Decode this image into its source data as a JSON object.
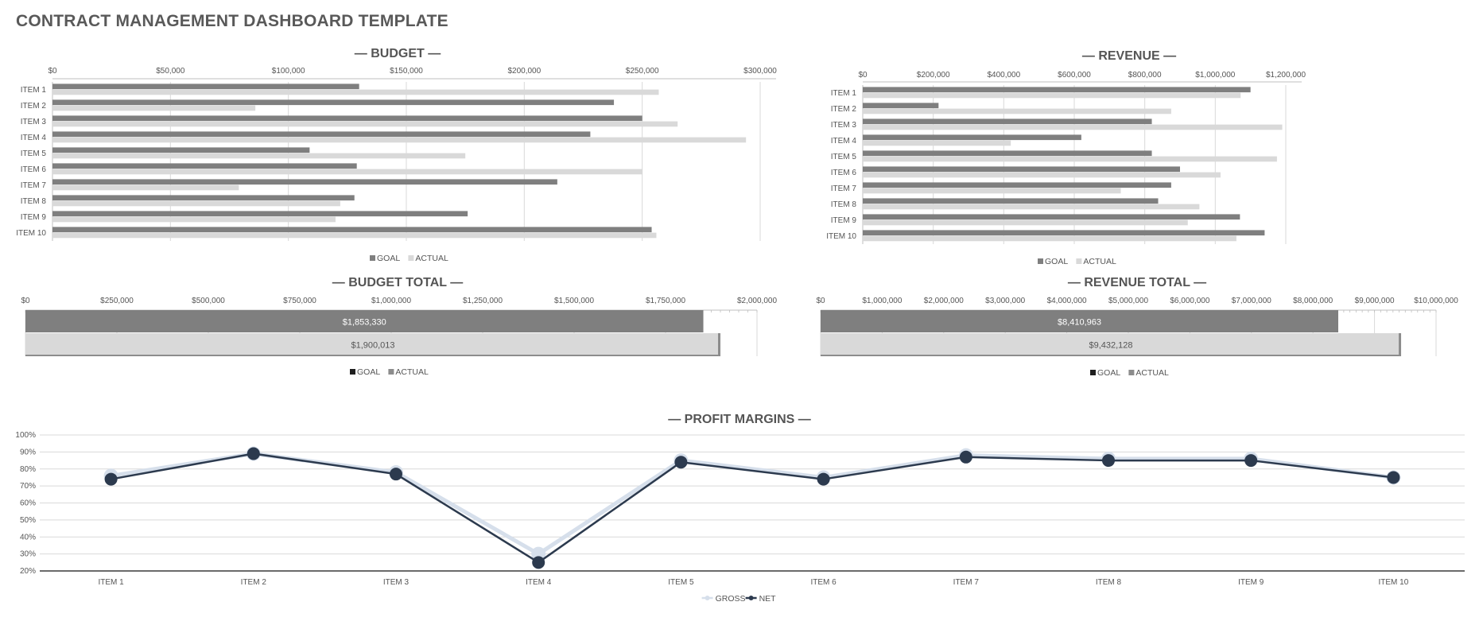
{
  "page": {
    "title": "CONTRACT MANAGEMENT DASHBOARD TEMPLATE"
  },
  "colors": {
    "goal": "#7f7f7f",
    "actual": "#d9d9d9",
    "gross": "#d6dfeb",
    "net": "#2c3a4e",
    "grid": "#d9d9d9",
    "axis": "#bfbfbf"
  },
  "chart_data": [
    {
      "id": "budget",
      "type": "bar",
      "orientation": "horizontal",
      "title": "— BUDGET —",
      "categories": [
        "ITEM 1",
        "ITEM 2",
        "ITEM 3",
        "ITEM 4",
        "ITEM 5",
        "ITEM 6",
        "ITEM 7",
        "ITEM 8",
        "ITEM 9",
        "ITEM 10"
      ],
      "series": [
        {
          "name": "GOAL",
          "values": [
            130000,
            238000,
            250000,
            228000,
            109000,
            129000,
            214000,
            128000,
            176000,
            254000
          ]
        },
        {
          "name": "ACTUAL",
          "values": [
            257000,
            86000,
            265000,
            294000,
            175000,
            250000,
            79000,
            122000,
            120000,
            256000
          ]
        }
      ],
      "xlim": [
        0,
        300000
      ],
      "ticks": [
        "$0",
        "$50,000",
        "$100,000",
        "$150,000",
        "$200,000",
        "$250,000",
        "$300,000"
      ],
      "tick_values": [
        0,
        50000,
        100000,
        150000,
        200000,
        250000,
        300000
      ],
      "legend": "bottom",
      "grid": true
    },
    {
      "id": "revenue",
      "type": "bar",
      "orientation": "horizontal",
      "title": "— REVENUE —",
      "categories": [
        "ITEM 1",
        "ITEM 2",
        "ITEM 3",
        "ITEM 4",
        "ITEM 5",
        "ITEM 6",
        "ITEM 7",
        "ITEM 8",
        "ITEM 9",
        "ITEM 10"
      ],
      "series": [
        {
          "name": "GOAL",
          "values": [
            1100000,
            215000,
            820000,
            620000,
            820000,
            900000,
            875000,
            838000,
            1070000,
            1140000
          ]
        },
        {
          "name": "ACTUAL",
          "values": [
            1072000,
            875000,
            1190000,
            420000,
            1175000,
            1015000,
            732000,
            955000,
            922000,
            1060000
          ]
        }
      ],
      "xlim": [
        0,
        1200000
      ],
      "ticks": [
        "$0",
        "$200,000",
        "$400,000",
        "$600,000",
        "$800,000",
        "$1,000,000",
        "$1,200,000"
      ],
      "tick_values": [
        0,
        200000,
        400000,
        600000,
        800000,
        1000000,
        1200000
      ],
      "legend": "bottom",
      "grid": true
    },
    {
      "id": "budget_total",
      "type": "bar",
      "orientation": "horizontal",
      "title": "— BUDGET TOTAL —",
      "series": [
        {
          "name": "GOAL",
          "value": 1853330,
          "label": "$1,853,330"
        },
        {
          "name": "ACTUAL",
          "value": 1900013,
          "label": "$1,900,013"
        }
      ],
      "xlim": [
        0,
        2000000
      ],
      "ticks": [
        "$0",
        "$250,000",
        "$500,000",
        "$750,000",
        "$1,000,000",
        "$1,250,000",
        "$1,500,000",
        "$1,750,000",
        "$2,000,000"
      ],
      "tick_values": [
        0,
        250000,
        500000,
        750000,
        1000000,
        1250000,
        1500000,
        1750000,
        2000000
      ],
      "legend": "bottom"
    },
    {
      "id": "revenue_total",
      "type": "bar",
      "orientation": "horizontal",
      "title": "— REVENUE TOTAL —",
      "series": [
        {
          "name": "GOAL",
          "value": 8410963,
          "label": "$8,410,963"
        },
        {
          "name": "ACTUAL",
          "value": 9432128,
          "label": "$9,432,128"
        }
      ],
      "xlim": [
        0,
        10000000
      ],
      "ticks": [
        "$0",
        "$1,000,000",
        "$2,000,000",
        "$3,000,000",
        "$4,000,000",
        "$5,000,000",
        "$6,000,000",
        "$7,000,000",
        "$8,000,000",
        "$9,000,000",
        "$10,000,000"
      ],
      "tick_values": [
        0,
        1000000,
        2000000,
        3000000,
        4000000,
        5000000,
        6000000,
        7000000,
        8000000,
        9000000,
        10000000
      ],
      "legend": "bottom"
    },
    {
      "id": "profit_margins",
      "type": "line",
      "title": "— PROFIT MARGINS —",
      "categories": [
        "ITEM 1",
        "ITEM 2",
        "ITEM 3",
        "ITEM 4",
        "ITEM 5",
        "ITEM 6",
        "ITEM 7",
        "ITEM 8",
        "ITEM 9",
        "ITEM 10"
      ],
      "series": [
        {
          "name": "GROSS",
          "values": [
            0.76,
            0.89,
            0.78,
            0.3,
            0.85,
            0.75,
            0.88,
            0.86,
            0.86,
            0.75
          ]
        },
        {
          "name": "NET",
          "values": [
            0.74,
            0.89,
            0.77,
            0.25,
            0.84,
            0.74,
            0.87,
            0.85,
            0.85,
            0.75
          ]
        }
      ],
      "ylim": [
        0.2,
        1.0
      ],
      "ticks": [
        "20%",
        "30%",
        "40%",
        "50%",
        "60%",
        "70%",
        "80%",
        "90%",
        "100%"
      ],
      "tick_values": [
        0.2,
        0.3,
        0.4,
        0.5,
        0.6,
        0.7,
        0.8,
        0.9,
        1.0
      ],
      "legend": "bottom",
      "grid": true
    }
  ]
}
